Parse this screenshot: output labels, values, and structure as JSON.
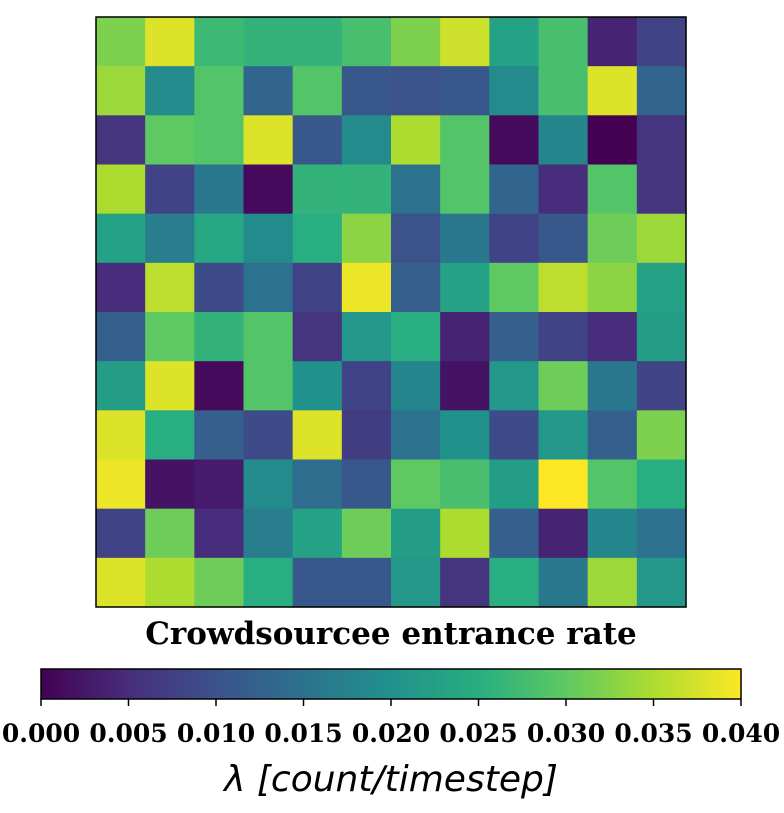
{
  "chart_data": {
    "type": "heatmap",
    "title": "Crowdsourcee entrance rate",
    "rows": 12,
    "cols": 12,
    "values": [
      [
        0.032,
        0.038,
        0.027,
        0.026,
        0.026,
        0.028,
        0.032,
        0.037,
        0.023,
        0.028,
        0.004,
        0.008
      ],
      [
        0.034,
        0.019,
        0.029,
        0.013,
        0.029,
        0.011,
        0.01,
        0.011,
        0.019,
        0.028,
        0.038,
        0.013
      ],
      [
        0.006,
        0.03,
        0.029,
        0.038,
        0.011,
        0.019,
        0.035,
        0.029,
        0.001,
        0.018,
        0.0,
        0.006
      ],
      [
        0.035,
        0.008,
        0.016,
        0.001,
        0.026,
        0.026,
        0.015,
        0.029,
        0.013,
        0.005,
        0.029,
        0.006
      ],
      [
        0.023,
        0.017,
        0.024,
        0.019,
        0.025,
        0.033,
        0.01,
        0.016,
        0.008,
        0.011,
        0.031,
        0.034
      ],
      [
        0.005,
        0.036,
        0.009,
        0.015,
        0.008,
        0.039,
        0.012,
        0.023,
        0.03,
        0.036,
        0.033,
        0.023
      ],
      [
        0.012,
        0.03,
        0.026,
        0.029,
        0.006,
        0.021,
        0.025,
        0.004,
        0.012,
        0.008,
        0.005,
        0.022
      ],
      [
        0.022,
        0.038,
        0.001,
        0.029,
        0.02,
        0.008,
        0.018,
        0.002,
        0.021,
        0.031,
        0.016,
        0.008
      ],
      [
        0.038,
        0.025,
        0.012,
        0.009,
        0.038,
        0.007,
        0.015,
        0.02,
        0.009,
        0.021,
        0.012,
        0.032
      ],
      [
        0.039,
        0.002,
        0.003,
        0.019,
        0.014,
        0.011,
        0.03,
        0.028,
        0.022,
        0.04,
        0.029,
        0.025
      ],
      [
        0.008,
        0.031,
        0.005,
        0.017,
        0.023,
        0.031,
        0.022,
        0.035,
        0.012,
        0.004,
        0.018,
        0.015
      ],
      [
        0.038,
        0.035,
        0.031,
        0.025,
        0.011,
        0.011,
        0.021,
        0.006,
        0.025,
        0.016,
        0.034,
        0.021
      ]
    ],
    "colorbar": {
      "label": "λ [count/timestep]",
      "range": [
        0.0,
        0.04
      ],
      "ticks": [
        "0.000",
        "0.005",
        "0.010",
        "0.015",
        "0.020",
        "0.025",
        "0.030",
        "0.035",
        "0.040"
      ],
      "colormap": "viridis"
    },
    "grid": false
  }
}
